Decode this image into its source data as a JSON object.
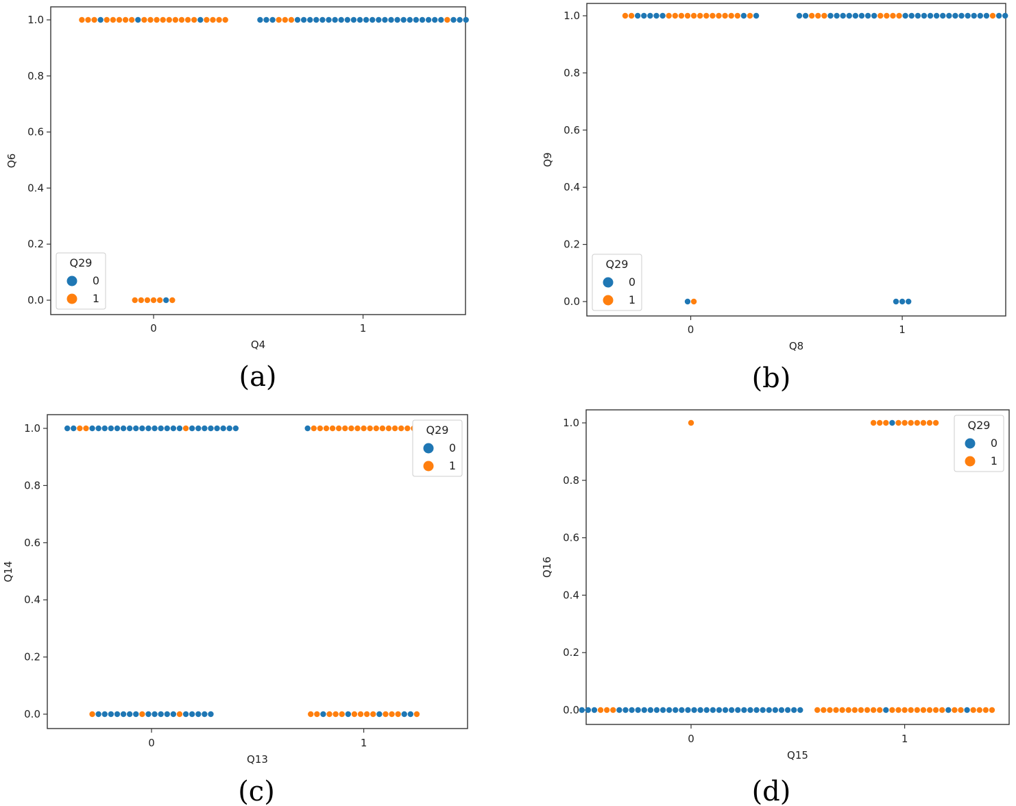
{
  "colors": {
    "class0": "#1f77b4",
    "class1": "#ff7f0e",
    "frame": "#333333"
  },
  "chart_data": [
    {
      "type": "scatter",
      "subtype": "swarm",
      "panel_label": "(a)",
      "xlabel": "Q4",
      "ylabel": "Q6",
      "categories": [
        "0",
        "1"
      ],
      "ylim": [
        -0.05,
        1.05
      ],
      "yticks": [
        "0.0",
        "0.2",
        "0.4",
        "0.6",
        "0.8",
        "1.0"
      ],
      "legend": {
        "title": "Q29",
        "position": "lower-left",
        "entries": [
          "0",
          "1"
        ]
      },
      "swarms": [
        {
          "x": 0,
          "y": 1,
          "points": [
            1,
            1,
            1,
            0,
            1,
            1,
            1,
            1,
            1,
            0,
            1,
            1,
            1,
            1,
            1,
            1,
            1,
            1,
            1,
            0,
            1,
            1,
            1,
            1
          ]
        },
        {
          "x": 0,
          "y": 0,
          "points": [
            1,
            1,
            1,
            1,
            1,
            0,
            1
          ]
        },
        {
          "x": 1,
          "y": 1,
          "points": [
            0,
            0,
            0,
            1,
            1,
            1,
            0,
            0,
            0,
            0,
            0,
            0,
            0,
            0,
            0,
            0,
            0,
            0,
            0,
            0,
            0,
            0,
            0,
            0,
            0,
            0,
            0,
            0,
            0,
            0,
            1,
            0,
            0,
            0
          ]
        }
      ]
    },
    {
      "type": "scatter",
      "subtype": "swarm",
      "panel_label": "(b)",
      "xlabel": "Q8",
      "ylabel": "Q9",
      "categories": [
        "0",
        "1"
      ],
      "ylim": [
        -0.05,
        1.05
      ],
      "yticks": [
        "0.0",
        "0.2",
        "0.4",
        "0.6",
        "0.8",
        "1.0"
      ],
      "legend": {
        "title": "Q29",
        "position": "lower-left",
        "entries": [
          "0",
          "1"
        ]
      },
      "swarms": [
        {
          "x": 0,
          "y": 1,
          "points": [
            1,
            1,
            0,
            0,
            0,
            0,
            0,
            1,
            1,
            1,
            1,
            1,
            1,
            1,
            1,
            1,
            1,
            1,
            1,
            0,
            1,
            0
          ]
        },
        {
          "x": 0,
          "y": 0,
          "points": [
            0,
            1
          ]
        },
        {
          "x": 1,
          "y": 1,
          "points": [
            0,
            0,
            1,
            1,
            1,
            0,
            0,
            0,
            0,
            0,
            0,
            0,
            0,
            1,
            1,
            1,
            1,
            0,
            0,
            0,
            0,
            0,
            0,
            0,
            0,
            0,
            0,
            0,
            0,
            0,
            0,
            1,
            0,
            0
          ]
        },
        {
          "x": 1,
          "y": 0,
          "points": [
            0,
            0,
            0
          ]
        }
      ]
    },
    {
      "type": "scatter",
      "subtype": "swarm",
      "panel_label": "(c)",
      "xlabel": "Q13",
      "ylabel": "Q14",
      "categories": [
        "0",
        "1"
      ],
      "ylim": [
        -0.05,
        1.05
      ],
      "yticks": [
        "0.0",
        "0.2",
        "0.4",
        "0.6",
        "0.8",
        "1.0"
      ],
      "legend": {
        "title": "Q29",
        "position": "upper-right",
        "entries": [
          "0",
          "1"
        ]
      },
      "swarms": [
        {
          "x": 0,
          "y": 1,
          "points": [
            0,
            0,
            1,
            1,
            0,
            0,
            0,
            0,
            0,
            0,
            0,
            0,
            0,
            0,
            0,
            0,
            0,
            0,
            0,
            1,
            0,
            0,
            0,
            0,
            0,
            0,
            0,
            0
          ]
        },
        {
          "x": 0,
          "y": 0,
          "points": [
            1,
            0,
            0,
            0,
            0,
            0,
            0,
            0,
            1,
            0,
            0,
            0,
            0,
            0,
            1,
            0,
            0,
            0,
            0,
            0
          ]
        },
        {
          "x": 1,
          "y": 1,
          "points": [
            0,
            1,
            1,
            1,
            1,
            1,
            1,
            1,
            1,
            1,
            1,
            1,
            1,
            1,
            1,
            1,
            1,
            1,
            1
          ]
        },
        {
          "x": 1,
          "y": 0,
          "points": [
            1,
            1,
            0,
            1,
            1,
            1,
            0,
            1,
            1,
            1,
            1,
            0,
            1,
            1,
            1,
            0,
            0,
            1
          ]
        }
      ]
    },
    {
      "type": "scatter",
      "subtype": "swarm",
      "panel_label": "(d)",
      "xlabel": "Q15",
      "ylabel": "Q16",
      "categories": [
        "0",
        "1"
      ],
      "ylim": [
        -0.05,
        1.05
      ],
      "yticks": [
        "0.0",
        "0.2",
        "0.4",
        "0.6",
        "0.8",
        "1.0"
      ],
      "legend": {
        "title": "Q29",
        "position": "upper-right",
        "entries": [
          "0",
          "1"
        ]
      },
      "swarms": [
        {
          "x": 0,
          "y": 1,
          "points": [
            1
          ]
        },
        {
          "x": 1,
          "y": 1,
          "points": [
            1,
            1,
            1,
            0,
            1,
            1,
            1,
            1,
            1,
            1,
            1
          ]
        },
        {
          "x": 0,
          "y": 0,
          "points": [
            0,
            0,
            0,
            1,
            1,
            1,
            0,
            0,
            0,
            0,
            0,
            0,
            0,
            0,
            0,
            0,
            0,
            0,
            0,
            0,
            0,
            0,
            0,
            0,
            0,
            0,
            0,
            0,
            0,
            0,
            0,
            0,
            0,
            0,
            0,
            0
          ]
        },
        {
          "x": 1,
          "y": 0,
          "points": [
            1,
            1,
            1,
            1,
            1,
            1,
            1,
            1,
            1,
            1,
            1,
            0,
            1,
            1,
            1,
            1,
            1,
            1,
            1,
            1,
            1,
            0,
            1,
            1,
            0,
            1,
            1,
            1,
            1
          ]
        }
      ]
    }
  ]
}
